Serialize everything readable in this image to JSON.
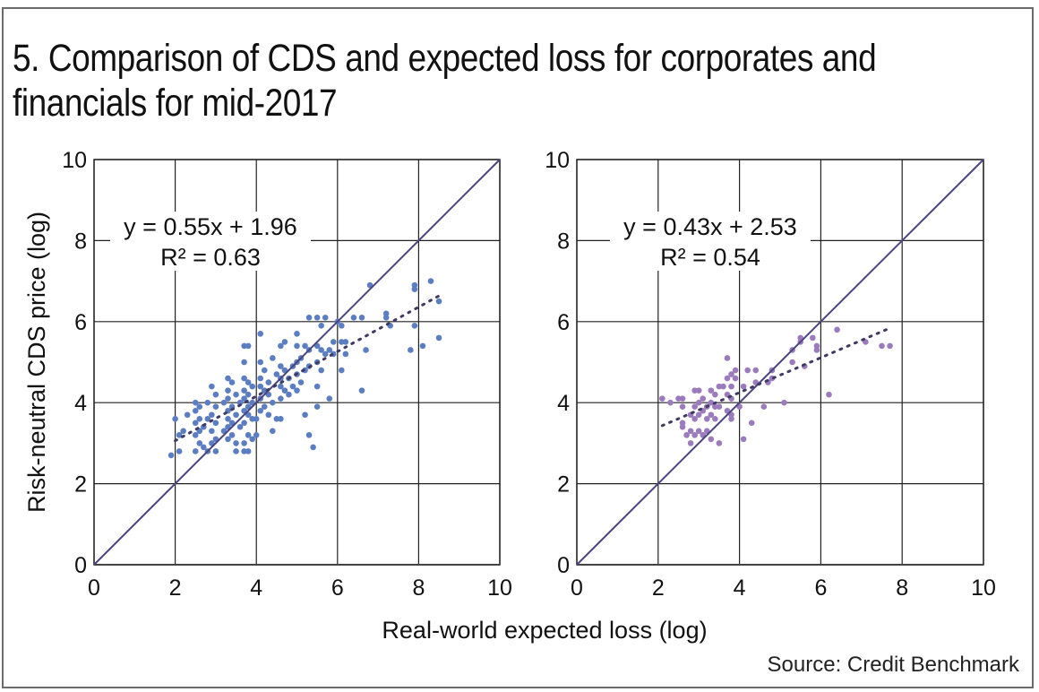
{
  "title_lines": [
    "5. Comparison of CDS and expected loss for corporates and",
    "financials for mid-2017"
  ],
  "source": "Source: Credit Benchmark",
  "colors": {
    "corporates_points": "#5b7ec2",
    "financials_points": "#9b7bbd",
    "diagonal": "#4a4580",
    "trendline": "#3e3a63",
    "grid": "#222222"
  },
  "chart_data": [
    {
      "type": "scatter",
      "name": "corporates",
      "title": "",
      "xlabel": "Real-world expected loss (log)",
      "ylabel": "Risk-neutral CDS price (log)",
      "xlim": [
        0,
        10
      ],
      "ylim": [
        0,
        10
      ],
      "xticks": [
        "0",
        "2",
        "4",
        "6",
        "8",
        "10"
      ],
      "yticks": [
        "0",
        "2",
        "4",
        "6",
        "8",
        "10"
      ],
      "grid": true,
      "reference_line": "y = x",
      "trendline": {
        "slope": 0.55,
        "intercept": 1.96,
        "x_range": [
          2.0,
          8.5
        ],
        "style": "dotted"
      },
      "equation": "y = 0.55x + 1.96",
      "r_squared": "R² = 0.63",
      "points": [
        [
          1.9,
          2.7
        ],
        [
          2.0,
          3.6
        ],
        [
          2.1,
          2.8
        ],
        [
          2.1,
          3.2
        ],
        [
          2.2,
          3.3
        ],
        [
          2.3,
          3.7
        ],
        [
          2.5,
          2.8
        ],
        [
          2.5,
          3.2
        ],
        [
          2.5,
          3.5
        ],
        [
          2.5,
          3.8
        ],
        [
          2.5,
          4.0
        ],
        [
          2.6,
          3.0
        ],
        [
          2.6,
          3.3
        ],
        [
          2.6,
          3.6
        ],
        [
          2.6,
          3.9
        ],
        [
          2.7,
          2.9
        ],
        [
          2.7,
          3.4
        ],
        [
          2.8,
          2.8
        ],
        [
          2.8,
          3.6
        ],
        [
          2.8,
          4.0
        ],
        [
          2.9,
          3.0
        ],
        [
          2.9,
          3.3
        ],
        [
          2.9,
          3.7
        ],
        [
          2.9,
          4.4
        ],
        [
          3.0,
          2.8
        ],
        [
          3.0,
          3.1
        ],
        [
          3.0,
          3.5
        ],
        [
          3.0,
          3.9
        ],
        [
          3.0,
          4.2
        ],
        [
          3.2,
          3.3
        ],
        [
          3.2,
          4.0
        ],
        [
          3.3,
          3.1
        ],
        [
          3.3,
          3.4
        ],
        [
          3.3,
          3.6
        ],
        [
          3.3,
          3.8
        ],
        [
          3.3,
          4.1
        ],
        [
          3.3,
          4.3
        ],
        [
          3.3,
          4.6
        ],
        [
          3.4,
          3.2
        ],
        [
          3.4,
          3.5
        ],
        [
          3.4,
          3.9
        ],
        [
          3.4,
          4.5
        ],
        [
          3.5,
          3.0
        ],
        [
          3.5,
          2.8
        ],
        [
          3.5,
          3.7
        ],
        [
          3.5,
          4.2
        ],
        [
          3.6,
          3.4
        ],
        [
          3.6,
          4.0
        ],
        [
          3.7,
          2.8
        ],
        [
          3.7,
          3.0
        ],
        [
          3.7,
          3.5
        ],
        [
          3.7,
          3.8
        ],
        [
          3.7,
          4.1
        ],
        [
          3.7,
          4.3
        ],
        [
          3.7,
          4.6
        ],
        [
          3.7,
          5.0
        ],
        [
          3.7,
          5.4
        ],
        [
          3.8,
          2.8
        ],
        [
          3.8,
          3.2
        ],
        [
          3.8,
          3.7
        ],
        [
          3.8,
          3.9
        ],
        [
          3.8,
          4.2
        ],
        [
          3.8,
          4.5
        ],
        [
          3.8,
          5.4
        ],
        [
          3.9,
          3.1
        ],
        [
          3.9,
          3.6
        ],
        [
          3.9,
          4.0
        ],
        [
          3.9,
          4.4
        ],
        [
          4.0,
          3.2
        ],
        [
          4.0,
          3.6
        ],
        [
          4.1,
          3.8
        ],
        [
          4.1,
          4.1
        ],
        [
          4.1,
          4.4
        ],
        [
          4.1,
          4.6
        ],
        [
          4.1,
          5.0
        ],
        [
          4.1,
          5.7
        ],
        [
          4.2,
          3.9
        ],
        [
          4.2,
          4.3
        ],
        [
          4.2,
          4.8
        ],
        [
          4.3,
          3.7
        ],
        [
          4.3,
          4.2
        ],
        [
          4.3,
          4.5
        ],
        [
          4.4,
          3.3
        ],
        [
          4.4,
          4.0
        ],
        [
          4.4,
          5.1
        ],
        [
          4.5,
          3.6
        ],
        [
          4.5,
          4.7
        ],
        [
          4.6,
          3.6
        ],
        [
          4.6,
          4.1
        ],
        [
          4.6,
          4.4
        ],
        [
          4.6,
          4.6
        ],
        [
          4.6,
          4.9
        ],
        [
          4.6,
          5.4
        ],
        [
          4.7,
          4.3
        ],
        [
          4.7,
          4.8
        ],
        [
          4.7,
          5.5
        ],
        [
          4.8,
          4.2
        ],
        [
          4.8,
          4.6
        ],
        [
          4.9,
          4.4
        ],
        [
          4.9,
          4.9
        ],
        [
          5.0,
          4.3
        ],
        [
          5.0,
          4.7
        ],
        [
          5.0,
          5.0
        ],
        [
          5.0,
          5.4
        ],
        [
          5.0,
          5.7
        ],
        [
          5.1,
          4.5
        ],
        [
          5.1,
          5.1
        ],
        [
          5.2,
          3.7
        ],
        [
          5.2,
          4.8
        ],
        [
          5.2,
          5.4
        ],
        [
          5.3,
          3.2
        ],
        [
          5.3,
          4.9
        ],
        [
          5.3,
          5.3
        ],
        [
          5.3,
          6.1
        ],
        [
          5.4,
          2.9
        ],
        [
          5.5,
          3.9
        ],
        [
          5.5,
          4.4
        ],
        [
          5.5,
          5.0
        ],
        [
          5.5,
          5.4
        ],
        [
          5.5,
          6.1
        ],
        [
          5.6,
          4.8
        ],
        [
          5.6,
          5.3
        ],
        [
          5.6,
          5.9
        ],
        [
          5.7,
          5.2
        ],
        [
          5.7,
          6.1
        ],
        [
          5.8,
          4.1
        ],
        [
          5.8,
          5.3
        ],
        [
          5.9,
          5.2
        ],
        [
          5.9,
          5.5
        ],
        [
          6.0,
          6.0
        ],
        [
          6.1,
          5.5
        ],
        [
          6.1,
          5.9
        ],
        [
          6.1,
          4.8
        ],
        [
          6.2,
          5.2
        ],
        [
          6.2,
          5.5
        ],
        [
          6.4,
          6.1
        ],
        [
          6.6,
          4.3
        ],
        [
          6.6,
          6.1
        ],
        [
          6.7,
          5.3
        ],
        [
          6.8,
          6.9
        ],
        [
          7.2,
          6.1
        ],
        [
          7.2,
          6.2
        ],
        [
          7.3,
          5.9
        ],
        [
          7.8,
          5.3
        ],
        [
          7.9,
          5.9
        ],
        [
          7.9,
          6.8
        ],
        [
          7.9,
          6.9
        ],
        [
          8.1,
          5.4
        ],
        [
          8.3,
          7.0
        ],
        [
          8.5,
          6.5
        ],
        [
          8.5,
          5.6
        ]
      ]
    },
    {
      "type": "scatter",
      "name": "financials",
      "title": "",
      "xlabel": "Real-world expected loss (log)",
      "ylabel": "",
      "xlim": [
        0,
        10
      ],
      "ylim": [
        0,
        10
      ],
      "xticks": [
        "0",
        "2",
        "4",
        "6",
        "8",
        "10"
      ],
      "yticks": [
        "0",
        "2",
        "4",
        "6",
        "8",
        "10"
      ],
      "grid": true,
      "reference_line": "y = x",
      "trendline": {
        "slope": 0.43,
        "intercept": 2.53,
        "x_range": [
          2.1,
          7.7
        ],
        "style": "dotted"
      },
      "equation": "y = 0.43x + 2.53",
      "r_squared": "R² = 0.54",
      "points": [
        [
          2.1,
          4.1
        ],
        [
          2.3,
          4.0
        ],
        [
          2.5,
          4.1
        ],
        [
          2.6,
          4.1
        ],
        [
          2.6,
          3.9
        ],
        [
          2.6,
          3.5
        ],
        [
          2.6,
          3.4
        ],
        [
          2.7,
          3.2
        ],
        [
          2.8,
          3.7
        ],
        [
          2.8,
          3.3
        ],
        [
          2.8,
          3.0
        ],
        [
          2.9,
          4.3
        ],
        [
          2.9,
          3.9
        ],
        [
          2.9,
          3.6
        ],
        [
          2.9,
          3.2
        ],
        [
          3.0,
          4.3
        ],
        [
          3.0,
          4.0
        ],
        [
          3.0,
          3.7
        ],
        [
          3.0,
          3.3
        ],
        [
          3.1,
          4.1
        ],
        [
          3.1,
          3.8
        ],
        [
          3.1,
          3.2
        ],
        [
          3.2,
          3.9
        ],
        [
          3.2,
          3.6
        ],
        [
          3.2,
          3.3
        ],
        [
          3.3,
          4.3
        ],
        [
          3.3,
          4.0
        ],
        [
          3.3,
          3.7
        ],
        [
          3.3,
          3.1
        ],
        [
          3.4,
          4.2
        ],
        [
          3.4,
          3.9
        ],
        [
          3.4,
          3.6
        ],
        [
          3.5,
          4.4
        ],
        [
          3.5,
          3.9
        ],
        [
          3.5,
          3.0
        ],
        [
          3.6,
          4.4
        ],
        [
          3.7,
          5.1
        ],
        [
          3.7,
          4.6
        ],
        [
          3.7,
          4.2
        ],
        [
          3.7,
          3.8
        ],
        [
          3.8,
          4.7
        ],
        [
          3.8,
          4.4
        ],
        [
          3.8,
          4.1
        ],
        [
          3.8,
          3.7
        ],
        [
          3.8,
          3.6
        ],
        [
          3.9,
          4.8
        ],
        [
          3.9,
          4.6
        ],
        [
          4.0,
          3.9
        ],
        [
          4.1,
          4.4
        ],
        [
          4.1,
          3.1
        ],
        [
          4.2,
          4.8
        ],
        [
          4.3,
          3.5
        ],
        [
          4.4,
          4.8
        ],
        [
          4.4,
          4.5
        ],
        [
          4.6,
          3.9
        ],
        [
          4.7,
          4.5
        ],
        [
          4.8,
          4.6
        ],
        [
          4.8,
          4.8
        ],
        [
          5.1,
          4.0
        ],
        [
          5.3,
          5.3
        ],
        [
          5.3,
          5.0
        ],
        [
          5.5,
          5.6
        ],
        [
          5.5,
          5.5
        ],
        [
          5.6,
          4.9
        ],
        [
          5.8,
          5.6
        ],
        [
          5.9,
          5.3
        ],
        [
          5.9,
          5.4
        ],
        [
          6.2,
          4.2
        ],
        [
          6.4,
          5.8
        ],
        [
          7.1,
          5.5
        ],
        [
          7.5,
          5.4
        ],
        [
          7.7,
          5.4
        ]
      ]
    }
  ]
}
